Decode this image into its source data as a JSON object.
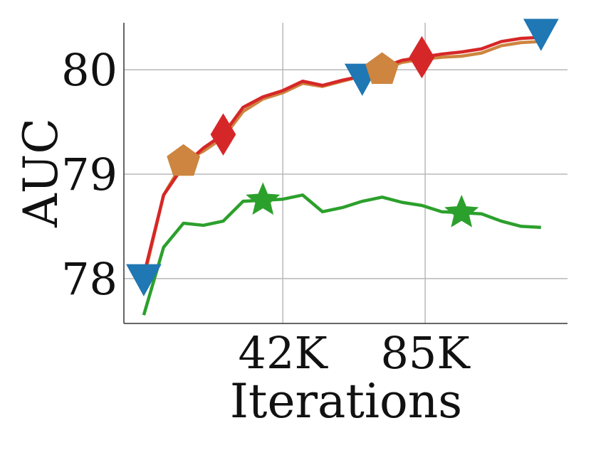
{
  "chart_data": {
    "type": "line",
    "xlabel": "Iterations",
    "ylabel": "AUC",
    "xlim": [
      -6,
      128
    ],
    "ylim": [
      77.57,
      80.45
    ],
    "x_ticks": [
      {
        "value": 42,
        "label": "42K"
      },
      {
        "value": 85,
        "label": "85K"
      }
    ],
    "y_ticks": [
      {
        "value": 78,
        "label": "78"
      },
      {
        "value": 79,
        "label": "79"
      },
      {
        "value": 80,
        "label": "80"
      }
    ],
    "grid": true,
    "x": [
      0,
      6,
      12,
      18,
      24,
      30,
      36,
      42,
      48,
      54,
      60,
      66,
      72,
      78,
      84,
      90,
      96,
      102,
      108,
      114,
      120
    ],
    "series": [
      {
        "color": "#1f77b4",
        "marker": "triangle-down",
        "values": [
          78.0,
          null,
          null,
          null,
          null,
          null,
          null,
          null,
          null,
          null,
          null,
          79.92,
          null,
          null,
          null,
          null,
          null,
          null,
          null,
          null,
          80.35
        ]
      },
      {
        "color": "#cd853f",
        "marker": "pentagon",
        "values": [
          78.0,
          78.8,
          79.12,
          79.22,
          79.35,
          79.6,
          79.72,
          79.78,
          79.87,
          79.84,
          79.89,
          79.94,
          80.0,
          80.07,
          80.1,
          80.12,
          80.13,
          80.16,
          80.23,
          80.26,
          80.27
        ],
        "marker_x": [
          12,
          72
        ]
      },
      {
        "color": "#d62728",
        "marker": "diamond",
        "values": [
          78.03,
          78.8,
          79.08,
          79.25,
          79.38,
          79.64,
          79.74,
          79.8,
          79.89,
          79.85,
          79.9,
          79.94,
          80.02,
          80.09,
          80.12,
          80.15,
          80.17,
          80.2,
          80.27,
          80.3,
          80.31
        ],
        "marker_x": [
          24,
          84
        ]
      },
      {
        "color": "#2ca02c",
        "marker": "star",
        "values": [
          77.65,
          78.3,
          78.53,
          78.51,
          78.55,
          78.74,
          78.75,
          78.76,
          78.8,
          78.64,
          78.68,
          78.74,
          78.78,
          78.73,
          78.7,
          78.64,
          78.63,
          78.62,
          78.55,
          78.5,
          78.49
        ],
        "marker_x": [
          36,
          96
        ]
      }
    ]
  }
}
